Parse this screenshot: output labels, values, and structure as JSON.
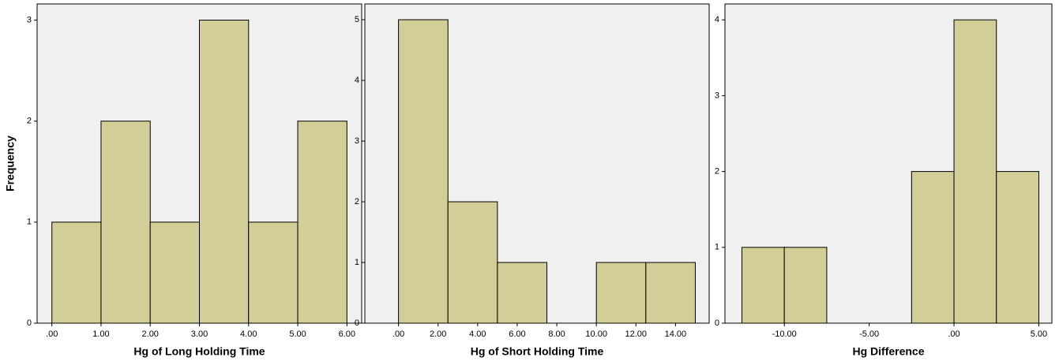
{
  "chart_data": [
    {
      "type": "histogram",
      "x_label": "Hg of Long Holding Time",
      "y_label": "Frequency",
      "bins": [
        0,
        1,
        2,
        3,
        4,
        5,
        6
      ],
      "values": [
        1,
        2,
        1,
        3,
        1,
        2
      ],
      "color": "#d3ce97",
      "xlim": [
        -0.3,
        6.3
      ],
      "ylim": [
        0,
        3.16
      ],
      "xticks": [
        {
          "value": 0,
          "label": ".00"
        },
        {
          "value": 1,
          "label": "1.00"
        },
        {
          "value": 2,
          "label": "2.00"
        },
        {
          "value": 3,
          "label": "3.00"
        },
        {
          "value": 4,
          "label": "4.00"
        },
        {
          "value": 5,
          "label": "5.00"
        },
        {
          "value": 6,
          "label": "6.00"
        }
      ],
      "yticks": [
        0,
        1,
        2,
        3
      ]
    },
    {
      "type": "histogram",
      "x_label": "Hg of Short Holding Time",
      "bins": [
        0,
        2.5,
        5,
        7.5,
        10,
        12.5,
        15
      ],
      "values": [
        5,
        2,
        1,
        0,
        1,
        1
      ],
      "color": "#d3ce97",
      "xlim": [
        -1.7,
        15.7
      ],
      "ylim": [
        0,
        5.26
      ],
      "xticks": [
        {
          "value": 0,
          "label": ".00"
        },
        {
          "value": 2,
          "label": "2.00"
        },
        {
          "value": 4,
          "label": "4.00"
        },
        {
          "value": 6,
          "label": "6.00"
        },
        {
          "value": 8,
          "label": "8.00"
        },
        {
          "value": 10,
          "label": "10.00"
        },
        {
          "value": 12,
          "label": "12.00"
        },
        {
          "value": 14,
          "label": "14.00"
        }
      ],
      "yticks": [
        0,
        1,
        2,
        3,
        4,
        5
      ]
    },
    {
      "type": "histogram",
      "x_label": "Hg Difference",
      "bins": [
        -12.5,
        -10,
        -7.5,
        -5,
        -2.5,
        0,
        2.5,
        5
      ],
      "values": [
        1,
        1,
        0,
        0,
        2,
        4,
        2
      ],
      "color": "#d3ce97",
      "xlim": [
        -13.5,
        5.77
      ],
      "ylim": [
        0,
        4.21
      ],
      "xticks": [
        {
          "value": -10,
          "label": "-10.00"
        },
        {
          "value": -5,
          "label": "-5.00"
        },
        {
          "value": 0,
          "label": ".00"
        },
        {
          "value": 5,
          "label": "5.00"
        }
      ],
      "yticks": [
        0,
        1,
        2,
        3,
        4
      ]
    }
  ]
}
